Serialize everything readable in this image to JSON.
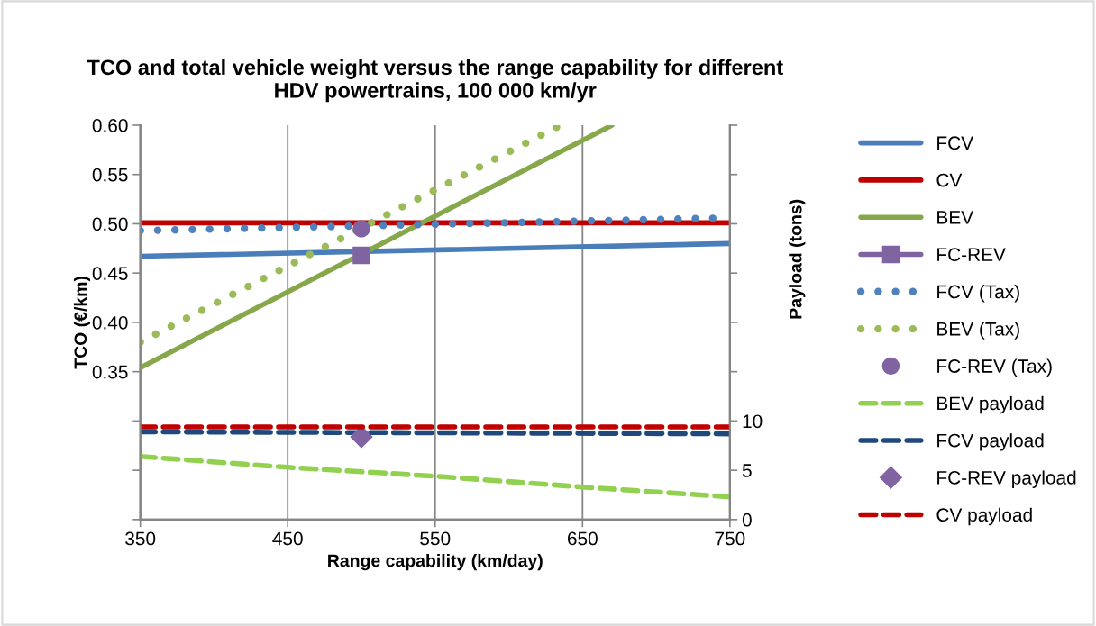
{
  "chart_data": {
    "type": "line",
    "title": "TCO and total vehicle weight versus the range capability for different\nHDV powertrains, 100 000 km/yr",
    "xlabel": "Range capability (km/day)",
    "ylabel": "TCO (€/km)",
    "y2label": "Payload (tons)",
    "xlim": [
      350,
      750
    ],
    "xticks": [
      350,
      450,
      550,
      650,
      750
    ],
    "ylim": [
      0.2,
      0.6
    ],
    "yticks": [
      {
        "value": 0.2,
        "label": null
      },
      {
        "value": 0.25,
        "label": null
      },
      {
        "value": 0.3,
        "label": null
      },
      {
        "value": 0.35,
        "label": "0.35"
      },
      {
        "value": 0.4,
        "label": "0.40"
      },
      {
        "value": 0.45,
        "label": "0.45"
      },
      {
        "value": 0.5,
        "label": "0.50"
      },
      {
        "value": 0.55,
        "label": "0.55"
      },
      {
        "value": 0.6,
        "label": "0.60"
      }
    ],
    "y2lim": [
      0,
      40
    ],
    "y2ticks": [
      0,
      5,
      10,
      {
        "value": 15,
        "label": null
      },
      {
        "value": 20,
        "label": null
      },
      {
        "value": 25,
        "label": null
      },
      {
        "value": 30,
        "label": null
      },
      {
        "value": 35,
        "label": null
      },
      {
        "value": 40,
        "label": null
      }
    ],
    "grid": "x",
    "legend": "right",
    "series": [
      {
        "name": "FCV",
        "color": "#4a7ebb",
        "line_style": "solid",
        "marker": "none",
        "x": [
          350,
          750
        ],
        "values": [
          0.467,
          0.48
        ]
      },
      {
        "name": "CV",
        "color": "#c00000",
        "line_style": "solid",
        "marker": "none",
        "x": [
          350,
          750
        ],
        "values": [
          0.501,
          0.501
        ]
      },
      {
        "name": "BEV",
        "color": "#86a84a",
        "line_style": "solid",
        "marker": "none",
        "x": [
          350,
          670
        ],
        "values": [
          0.354,
          0.6
        ]
      },
      {
        "name": "FC-REV",
        "color": "#8064a2",
        "line_style": "solid",
        "marker": "square",
        "x": [
          500
        ],
        "values": [
          0.468
        ]
      },
      {
        "name": "FCV (Tax)",
        "color": "#4f81bd",
        "line_style": "dotted",
        "marker": "none",
        "x": [
          350,
          750
        ],
        "values": [
          0.493,
          0.506
        ]
      },
      {
        "name": "BEV (Tax)",
        "color": "#9bbb59",
        "line_style": "dotted",
        "marker": "none",
        "x": [
          350,
          635
        ],
        "values": [
          0.38,
          0.6
        ]
      },
      {
        "name": "FC-REV (Tax)",
        "type": "scatter",
        "color": "#8064a2",
        "marker": "circle",
        "x": [
          500
        ],
        "values": [
          0.495
        ]
      },
      {
        "name": "BEV payload",
        "axis": "y2",
        "color": "#92d050",
        "line_style": "dashed",
        "marker": "none",
        "x": [
          350,
          450,
          550,
          650,
          750
        ],
        "values": [
          6.4,
          5.3,
          4.4,
          3.3,
          2.3
        ]
      },
      {
        "name": "FCV payload",
        "axis": "y2",
        "color": "#1f497d",
        "line_style": "dashed",
        "marker": "none",
        "x": [
          350,
          750
        ],
        "values": [
          8.9,
          8.7
        ]
      },
      {
        "name": "FC-REV payload",
        "type": "scatter",
        "axis": "y2",
        "color": "#8064a2",
        "marker": "diamond",
        "x": [
          500
        ],
        "values": [
          8.4
        ]
      },
      {
        "name": "CV payload",
        "axis": "y2",
        "color": "#c00000",
        "line_style": "dashed",
        "marker": "none",
        "x": [
          350,
          750
        ],
        "values": [
          9.4,
          9.4
        ]
      }
    ]
  }
}
